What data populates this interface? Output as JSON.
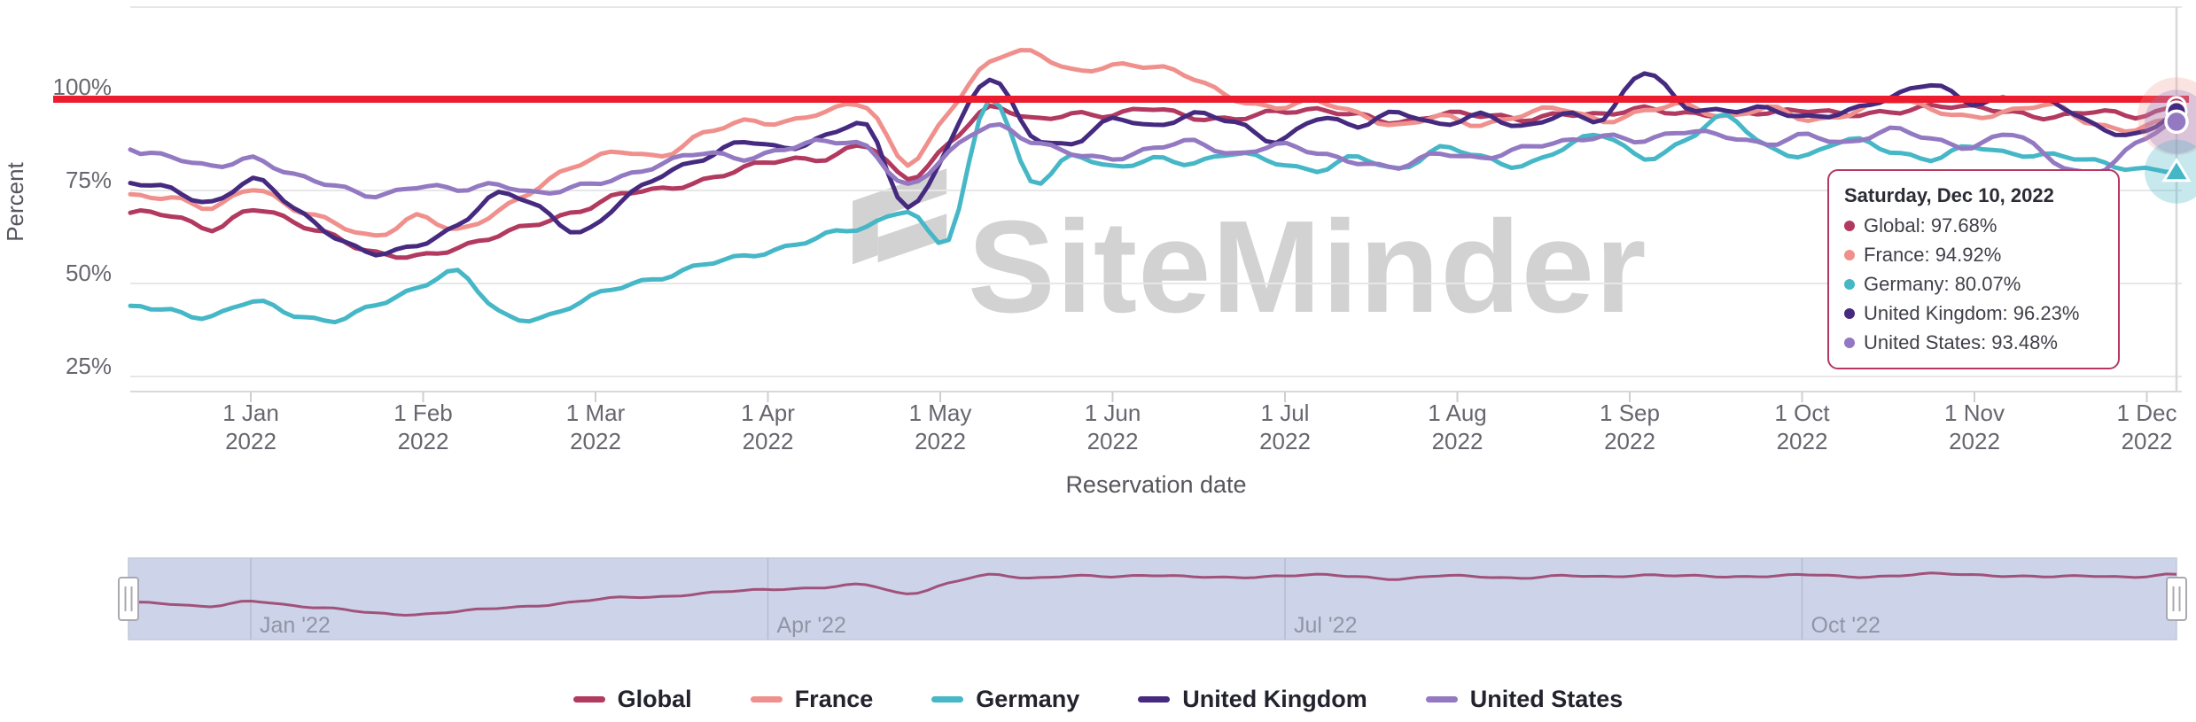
{
  "chart": {
    "y_axis_title": "Percent",
    "x_axis_title": "Reservation date",
    "watermark_text": "SiteMinder",
    "y_tick_labels": [
      {
        "label": "100%",
        "value": 100
      },
      {
        "label": "75%",
        "value": 75
      },
      {
        "label": "50%",
        "value": 50
      },
      {
        "label": "25%",
        "value": 25
      }
    ],
    "x_ticks": [
      {
        "line1": "1 Jan",
        "line2": "2022"
      },
      {
        "line1": "1 Feb",
        "line2": "2022"
      },
      {
        "line1": "1 Mar",
        "line2": "2022"
      },
      {
        "line1": "1 Apr",
        "line2": "2022"
      },
      {
        "line1": "1 May",
        "line2": "2022"
      },
      {
        "line1": "1 Jun",
        "line2": "2022"
      },
      {
        "line1": "1 Jul",
        "line2": "2022"
      },
      {
        "line1": "1 Aug",
        "line2": "2022"
      },
      {
        "line1": "1 Sep",
        "line2": "2022"
      },
      {
        "line1": "1 Oct",
        "line2": "2022"
      },
      {
        "line1": "1 Nov",
        "line2": "2022"
      },
      {
        "line1": "1 Dec",
        "line2": "2022"
      }
    ],
    "colors": {
      "plotline_red": "#ec1b2d",
      "gridline": "#e7e7e7",
      "axis_line": "#d9d9d9",
      "crosshair": "#d8d8d8",
      "axis_text": "#66666e",
      "watermark_gray": "#d2d2d2",
      "navigator_fill": "#cdd3e8",
      "navigator_grid": "#b6bccf",
      "navigator_outline": "#c4c9da",
      "navigator_line": "#a0527a",
      "navigator_label": "#9195a6",
      "handle_fill": "#ffffff",
      "handle_stroke": "#a9a9b2"
    }
  },
  "chart_data": {
    "type": "line",
    "title": "",
    "xlabel": "Reservation date",
    "ylabel": "Percent",
    "x_range": [
      "10 Dec 2021",
      "10 Dec 2022"
    ],
    "ylim": [
      21,
      124
    ],
    "grid": true,
    "legend_position": "bottom",
    "plotline": {
      "value": 100,
      "color": "#ec1b2d"
    },
    "series": [
      {
        "name": "Global",
        "color": "#b2395f",
        "marker": "circle",
        "values": [
          69,
          68,
          65,
          70,
          66,
          63,
          58,
          57,
          60,
          63,
          66,
          70,
          74,
          75,
          78,
          81,
          83,
          84,
          87,
          78,
          88,
          97,
          94,
          96,
          95,
          97,
          95,
          94,
          96,
          97,
          95,
          93,
          96,
          95,
          94,
          96,
          95,
          97,
          96,
          95,
          96,
          97,
          95,
          96,
          98,
          97,
          96,
          95,
          96,
          95,
          97.68
        ]
      },
      {
        "name": "France",
        "color": "#f0908d",
        "marker": "circle",
        "values": [
          74,
          73,
          70,
          76,
          70,
          66,
          63,
          68,
          64,
          70,
          76,
          82,
          86,
          84,
          90,
          94,
          93,
          96,
          98,
          82,
          96,
          110,
          112,
          107,
          109,
          108,
          105,
          100,
          97,
          99,
          96,
          92,
          95,
          93,
          95,
          97,
          94,
          96,
          98,
          95,
          97,
          94,
          96,
          99,
          97,
          95,
          96,
          98,
          93,
          91,
          94.92
        ]
      },
      {
        "name": "Germany",
        "color": "#45b7c6",
        "marker": "triangle",
        "values": [
          44,
          43,
          41,
          45,
          42,
          40,
          44,
          49,
          53,
          42,
          41,
          45,
          49,
          52,
          55,
          57,
          60,
          63,
          65,
          70,
          62,
          100,
          78,
          84,
          81,
          84,
          82,
          85,
          83,
          80,
          84,
          81,
          86,
          84,
          82,
          86,
          90,
          84,
          88,
          95,
          87,
          84,
          89,
          86,
          83,
          87,
          85,
          84,
          83,
          81,
          80.07
        ]
      },
      {
        "name": "United Kingdom",
        "color": "#452a80",
        "marker": "circle",
        "values": [
          77,
          75,
          72,
          78,
          70,
          63,
          58,
          60,
          66,
          74,
          70,
          64,
          72,
          79,
          84,
          88,
          86,
          90,
          92,
          70,
          88,
          105,
          90,
          88,
          94,
          92,
          96,
          93,
          88,
          95,
          92,
          96,
          93,
          95,
          92,
          96,
          94,
          107,
          98,
          96,
          97,
          95,
          96,
          100,
          104,
          98,
          100,
          99,
          92,
          90,
          96.23
        ]
      },
      {
        "name": "United States",
        "color": "#9379c2",
        "marker": "circle",
        "values": [
          86,
          84,
          81,
          84,
          79,
          76,
          74,
          76,
          75,
          77,
          74,
          76,
          79,
          82,
          85,
          84,
          86,
          88,
          87,
          76,
          85,
          93,
          88,
          85,
          84,
          86,
          88,
          85,
          87,
          85,
          83,
          81,
          85,
          84,
          86,
          88,
          90,
          88,
          91,
          90,
          87,
          90,
          88,
          91,
          89,
          87,
          90,
          83,
          80,
          87,
          93.48
        ]
      }
    ],
    "navigator_source_series": "Global",
    "navigator_labels": [
      {
        "text": "Jan '22",
        "month_index": 0
      },
      {
        "text": "Apr '22",
        "month_index": 3
      },
      {
        "text": "Jul '22",
        "month_index": 6
      },
      {
        "text": "Oct '22",
        "month_index": 9
      }
    ]
  },
  "tooltip": {
    "title": "Saturday, Dec 10, 2022",
    "rows": [
      {
        "label": "Global",
        "value": "97.68%",
        "color": "#b2395f"
      },
      {
        "label": "France",
        "value": "94.92%",
        "color": "#f0908d"
      },
      {
        "label": "Germany",
        "value": "80.07%",
        "color": "#45b7c6"
      },
      {
        "label": "United Kingdom",
        "value": "96.23%",
        "color": "#452a80"
      },
      {
        "label": "United States",
        "value": "93.48%",
        "color": "#9379c2"
      }
    ]
  },
  "legend": {
    "items": [
      {
        "label": "Global",
        "color": "#b2395f"
      },
      {
        "label": "France",
        "color": "#f0908d"
      },
      {
        "label": "Germany",
        "color": "#45b7c6"
      },
      {
        "label": "United Kingdom",
        "color": "#452a80"
      },
      {
        "label": "United States",
        "color": "#9379c2"
      }
    ]
  }
}
